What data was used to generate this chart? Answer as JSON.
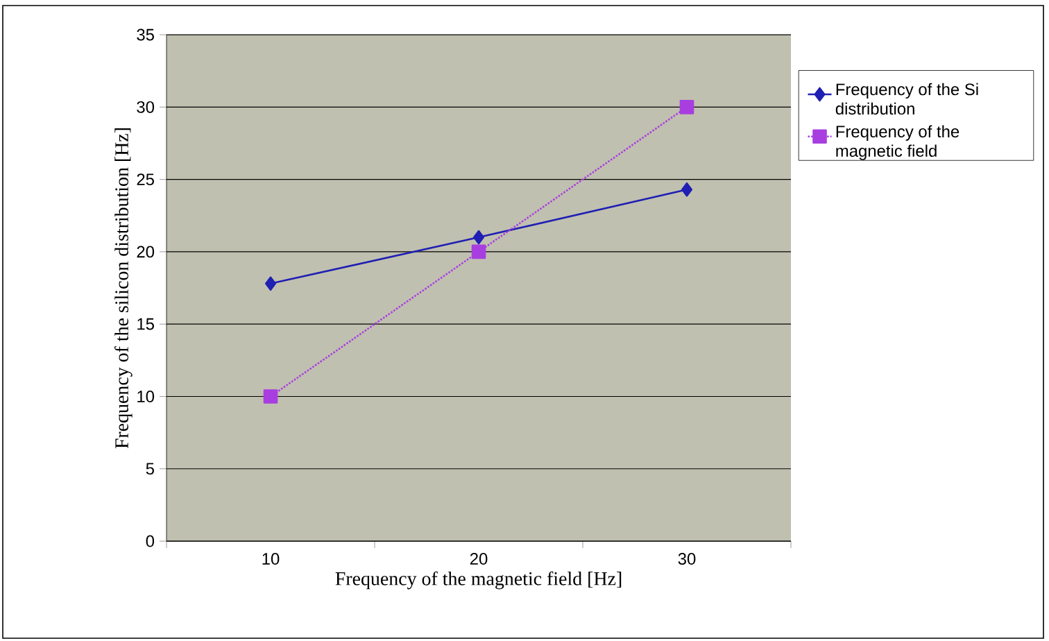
{
  "chart_data": {
    "type": "line",
    "xlabel": "Frequency of  the magnetic field [Hz]",
    "ylabel": "Frequency of the silicon distribution [Hz]",
    "categories": [
      "10",
      "20",
      "30"
    ],
    "series": [
      {
        "name": "Frequency of the Si distribution",
        "color": "#1f1fb4",
        "values": [
          17.8,
          21.0,
          24.3
        ],
        "marker": "diamond",
        "line_style": "solid"
      },
      {
        "name": "Frequency of the magnetic field",
        "color": "#a83ee0",
        "values": [
          10,
          20,
          30
        ],
        "marker": "square",
        "line_style": "dotted"
      }
    ],
    "ylim": [
      0,
      35
    ],
    "yticks": [
      0,
      5,
      10,
      15,
      20,
      25,
      30,
      35
    ],
    "grid": "y",
    "legend": "right"
  }
}
